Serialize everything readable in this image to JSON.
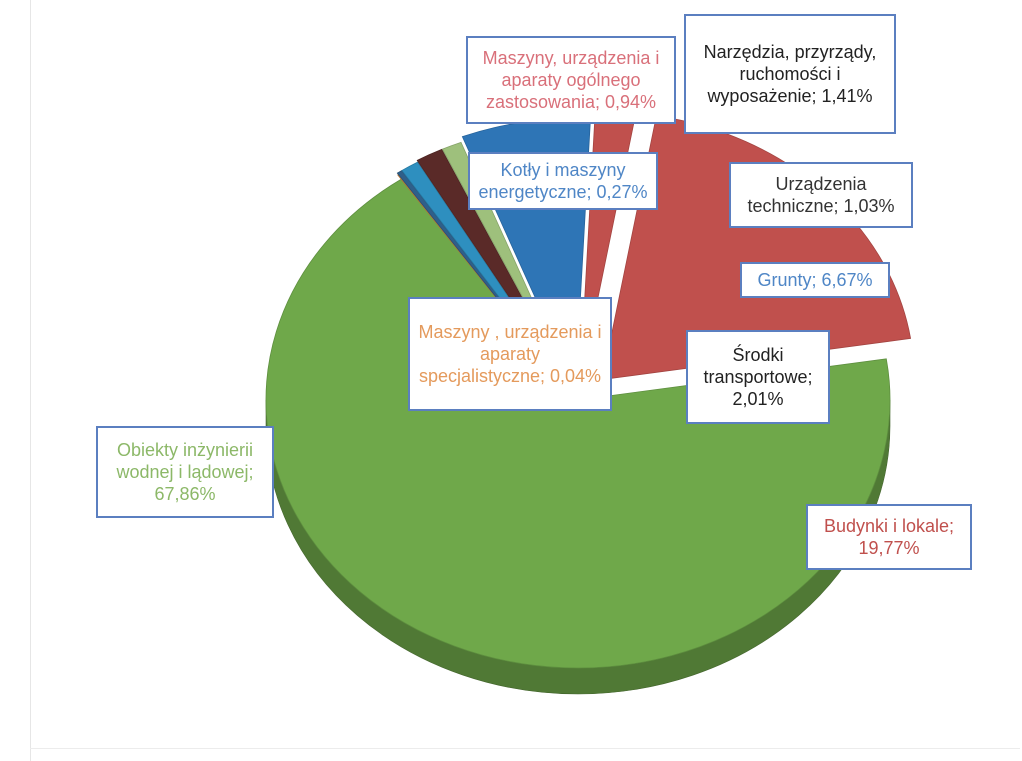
{
  "chart_data": {
    "type": "pie",
    "title": "",
    "style": "3d-exploded",
    "slices": [
      {
        "label": "Budynki i lokale; 19,77%",
        "name": "Budynki i lokale",
        "value": 19.77,
        "color": "#c0504d",
        "label_color": "#c0504d"
      },
      {
        "label": "Obiekty inżynierii wodnej i lądowej; 67,86%",
        "name": "Obiekty inżynierii wodnej i lądowej",
        "value": 67.86,
        "color": "#6fa84a",
        "label_color": "#8cb868"
      },
      {
        "label": "Maszyny , urządzenia i aparaty specjalistyczne; 0,04%",
        "name": "Maszyny , urządzenia i aparaty specjalistyczne",
        "value": 0.04,
        "color": "#e08a3c",
        "label_color": "#e49a5c"
      },
      {
        "label": "Kotły i maszyny energetyczne; 0,27%",
        "name": "Kotły i maszyny energetyczne",
        "value": 0.27,
        "color": "#2f5f8a",
        "label_color": "#4f86c6"
      },
      {
        "label": "Maszyny, urządzenia i aparaty ogólnego zastosowania; 0,94%",
        "name": "Maszyny, urządzenia i aparaty ogólnego zastosowania",
        "value": 0.94,
        "color": "#2e8fbf",
        "label_color": "#d9707a"
      },
      {
        "label": "Narzędzia, przyrządy, ruchomości i wyposażenie; 1,41%",
        "name": "Narzędzia, przyrządy, ruchomości i wyposażenie",
        "value": 1.41,
        "color": "#5a2a28",
        "label_color": "#222222"
      },
      {
        "label": "Urządzenia techniczne; 1,03%",
        "name": "Urządzenia techniczne",
        "value": 1.03,
        "color": "#9ec07c",
        "label_color": "#333333"
      },
      {
        "label": "Grunty; 6,67%",
        "name": "Grunty",
        "value": 6.67,
        "color": "#2e75b6",
        "label_color": "#4f86c6"
      },
      {
        "label": "Środki transportowe; 2,01%",
        "name": "Środki transportowe",
        "value": 2.01,
        "color": "#c0504d",
        "label_color": "#222222"
      }
    ],
    "legend": "none"
  }
}
